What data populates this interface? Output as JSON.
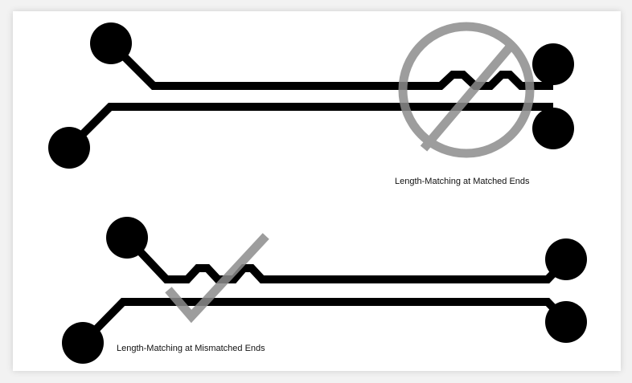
{
  "figure": {
    "captions": {
      "matched_ends": "Length-Matching at Matched Ends",
      "mismatched_ends": "Length-Matching at Mismatched Ends"
    },
    "colors": {
      "trace": "#000000",
      "symbol": "#8c8c8c",
      "background": "#ffffff"
    },
    "icons": {
      "top_pair_symbol": "prohibited-icon",
      "bottom_pair_symbol": "checkmark-icon"
    }
  }
}
